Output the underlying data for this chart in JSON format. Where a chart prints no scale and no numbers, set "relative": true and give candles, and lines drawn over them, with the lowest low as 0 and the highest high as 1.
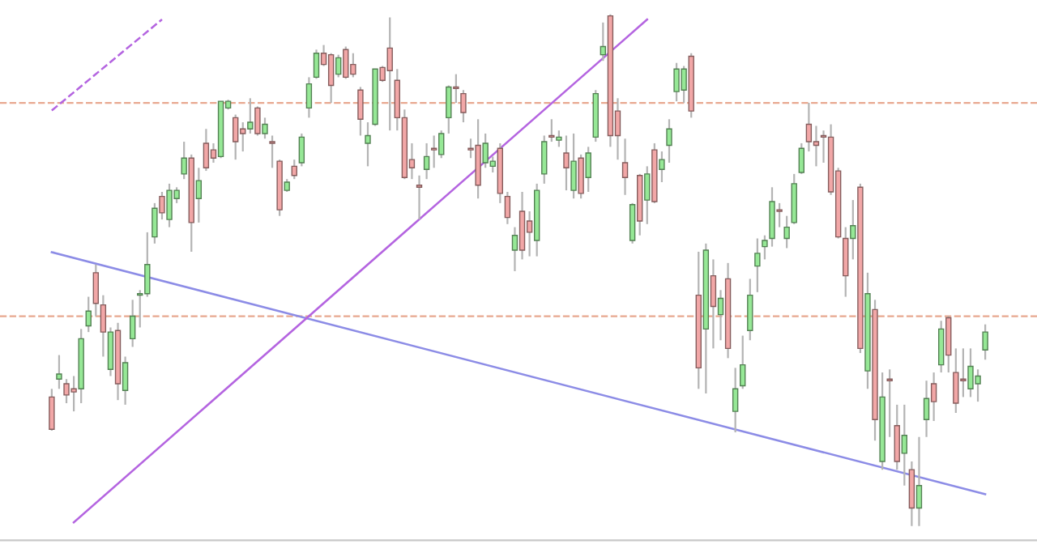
{
  "chart_data": {
    "type": "candlestick",
    "relative": true,
    "categories": [
      null,
      null,
      null,
      null,
      null,
      null,
      null,
      null,
      null,
      null,
      null,
      null,
      null,
      null,
      null,
      null,
      null,
      null,
      null,
      null,
      null,
      null,
      null,
      null,
      null,
      null,
      null,
      null,
      null,
      null,
      null,
      null,
      null,
      null,
      null,
      null,
      null,
      null,
      null,
      null,
      null,
      null,
      null,
      null,
      null,
      null,
      null,
      null,
      null,
      null,
      null,
      null,
      null,
      null,
      null,
      null,
      null,
      null,
      null,
      null,
      null,
      null,
      null,
      null,
      null,
      null,
      null,
      null,
      null,
      null,
      null,
      null,
      null,
      null,
      null,
      null,
      null,
      null,
      null,
      null,
      null,
      null,
      null,
      null,
      null,
      null,
      null,
      null,
      null,
      null,
      null,
      null,
      null,
      null,
      null,
      null,
      null,
      null,
      null,
      null,
      null,
      null,
      null,
      null,
      null,
      null,
      null,
      null,
      null,
      null,
      null,
      null,
      null,
      null,
      null,
      null,
      null,
      null,
      null,
      null,
      null,
      null,
      null,
      null,
      null,
      null,
      null,
      null
    ],
    "ohlc": [
      [
        0.252,
        0.268,
        0.186,
        0.189
      ],
      [
        0.287,
        0.334,
        0.268,
        0.297
      ],
      [
        0.278,
        0.287,
        0.24,
        0.256
      ],
      [
        0.268,
        0.293,
        0.224,
        0.262
      ],
      [
        0.268,
        0.385,
        0.24,
        0.366
      ],
      [
        0.391,
        0.448,
        0.379,
        0.42
      ],
      [
        0.495,
        0.511,
        0.41,
        0.435
      ],
      [
        0.432,
        0.451,
        0.331,
        0.379
      ],
      [
        0.306,
        0.388,
        0.293,
        0.379
      ],
      [
        0.382,
        0.397,
        0.246,
        0.278
      ],
      [
        0.265,
        0.331,
        0.237,
        0.319
      ],
      [
        0.366,
        0.442,
        0.35,
        0.41
      ],
      [
        0.451,
        0.461,
        0.388,
        0.454
      ],
      [
        0.454,
        0.574,
        0.448,
        0.511
      ],
      [
        0.565,
        0.631,
        0.552,
        0.621
      ],
      [
        0.644,
        0.653,
        0.599,
        0.612
      ],
      [
        0.599,
        0.669,
        0.584,
        0.656
      ],
      [
        0.64,
        0.662,
        0.631,
        0.656
      ],
      [
        0.688,
        0.751,
        0.678,
        0.719
      ],
      [
        0.719,
        0.726,
        0.536,
        0.593
      ],
      [
        0.64,
        0.7,
        0.593,
        0.675
      ],
      [
        0.748,
        0.776,
        0.694,
        0.7
      ],
      [
        0.735,
        0.748,
        0.71,
        0.719
      ],
      [
        0.722,
        0.83,
        0.719,
        0.83
      ],
      [
        0.817,
        0.833,
        0.814,
        0.83
      ],
      [
        0.798,
        0.804,
        0.716,
        0.751
      ],
      [
        0.776,
        0.789,
        0.732,
        0.767
      ],
      [
        0.776,
        0.836,
        0.767,
        0.789
      ],
      [
        0.817,
        0.82,
        0.763,
        0.767
      ],
      [
        0.767,
        0.798,
        0.757,
        0.785
      ],
      [
        0.751,
        0.763,
        0.7,
        0.748
      ],
      [
        0.713,
        0.716,
        0.606,
        0.618
      ],
      [
        0.656,
        0.678,
        0.653,
        0.672
      ],
      [
        0.703,
        0.716,
        0.678,
        0.685
      ],
      [
        0.71,
        0.767,
        0.703,
        0.76
      ],
      [
        0.817,
        0.877,
        0.798,
        0.864
      ],
      [
        0.877,
        0.931,
        0.874,
        0.924
      ],
      [
        0.924,
        0.94,
        0.899,
        0.902
      ],
      [
        0.921,
        0.924,
        0.827,
        0.861
      ],
      [
        0.883,
        0.921,
        0.877,
        0.915
      ],
      [
        0.931,
        0.937,
        0.874,
        0.877
      ],
      [
        0.902,
        0.924,
        0.877,
        0.883
      ],
      [
        0.852,
        0.858,
        0.763,
        0.795
      ],
      [
        0.748,
        0.789,
        0.703,
        0.763
      ],
      [
        0.785,
        0.893,
        0.782,
        0.893
      ],
      [
        0.896,
        0.899,
        0.868,
        0.871
      ],
      [
        0.934,
        0.994,
        0.773,
        0.89
      ],
      [
        0.871,
        0.893,
        0.773,
        0.798
      ],
      [
        0.798,
        0.814,
        0.678,
        0.681
      ],
      [
        0.716,
        0.748,
        0.678,
        0.7
      ],
      [
        0.666,
        0.685,
        0.599,
        0.662
      ],
      [
        0.697,
        0.748,
        0.678,
        0.722
      ],
      [
        0.738,
        0.763,
        0.7,
        0.735
      ],
      [
        0.726,
        0.773,
        0.719,
        0.767
      ],
      [
        0.798,
        0.861,
        0.767,
        0.858
      ],
      [
        0.858,
        0.883,
        0.827,
        0.855
      ],
      [
        0.845,
        0.852,
        0.789,
        0.808
      ],
      [
        0.738,
        0.757,
        0.719,
        0.735
      ],
      [
        0.744,
        0.795,
        0.64,
        0.666
      ],
      [
        0.71,
        0.767,
        0.7,
        0.748
      ],
      [
        0.703,
        0.722,
        0.691,
        0.713
      ],
      [
        0.738,
        0.748,
        0.631,
        0.65
      ],
      [
        0.644,
        0.653,
        0.59,
        0.603
      ],
      [
        0.539,
        0.584,
        0.498,
        0.568
      ],
      [
        0.615,
        0.653,
        0.521,
        0.539
      ],
      [
        0.596,
        0.615,
        0.527,
        0.574
      ],
      [
        0.558,
        0.669,
        0.527,
        0.656
      ],
      [
        0.688,
        0.763,
        0.669,
        0.751
      ],
      [
        0.76,
        0.795,
        0.751,
        0.763
      ],
      [
        0.754,
        0.773,
        0.741,
        0.76
      ],
      [
        0.729,
        0.763,
        0.656,
        0.7
      ],
      [
        0.656,
        0.767,
        0.64,
        0.713
      ],
      [
        0.719,
        0.726,
        0.64,
        0.65
      ],
      [
        0.681,
        0.741,
        0.653,
        0.729
      ],
      [
        0.76,
        0.852,
        0.751,
        0.845
      ],
      [
        0.921,
        0.984,
        0.909,
        0.937
      ],
      [
        0.997,
        1,
        0.741,
        0.763
      ],
      [
        0.811,
        0.836,
        0.716,
        0.763
      ],
      [
        0.71,
        0.757,
        0.647,
        0.681
      ],
      [
        0.558,
        0.631,
        0.552,
        0.628
      ],
      [
        0.685,
        0.688,
        0.568,
        0.596
      ],
      [
        0.637,
        0.703,
        0.59,
        0.688
      ],
      [
        0.735,
        0.748,
        0.631,
        0.634
      ],
      [
        0.697,
        0.732,
        0.672,
        0.716
      ],
      [
        0.744,
        0.795,
        0.71,
        0.776
      ],
      [
        0.849,
        0.905,
        0.83,
        0.893
      ],
      [
        0.852,
        0.899,
        0.827,
        0.893
      ],
      [
        0.918,
        0.924,
        0.798,
        0.811
      ],
      [
        0.451,
        0.536,
        0.268,
        0.309
      ],
      [
        0.385,
        0.552,
        0.259,
        0.539
      ],
      [
        0.489,
        0.521,
        0.347,
        0.429
      ],
      [
        0.413,
        0.461,
        0.363,
        0.445
      ],
      [
        0.483,
        0.514,
        0.328,
        0.347
      ],
      [
        0.224,
        0.309,
        0.183,
        0.268
      ],
      [
        0.274,
        0.372,
        0.268,
        0.315
      ],
      [
        0.382,
        0.483,
        0.363,
        0.451
      ],
      [
        0.508,
        0.562,
        0.457,
        0.533
      ],
      [
        0.546,
        0.568,
        0.521,
        0.558
      ],
      [
        0.562,
        0.662,
        0.546,
        0.634
      ],
      [
        0.615,
        0.631,
        0.584,
        0.618
      ],
      [
        0.562,
        0.606,
        0.543,
        0.584
      ],
      [
        0.593,
        0.688,
        0.59,
        0.669
      ],
      [
        0.691,
        0.748,
        0.688,
        0.738
      ],
      [
        0.785,
        0.827,
        0.732,
        0.751
      ],
      [
        0.751,
        0.782,
        0.703,
        0.744
      ],
      [
        0.76,
        0.773,
        0.71,
        0.763
      ],
      [
        0.76,
        0.785,
        0.647,
        0.653
      ],
      [
        0.694,
        0.7,
        0.562,
        0.565
      ],
      [
        0.562,
        0.584,
        0.448,
        0.489
      ],
      [
        0.562,
        0.637,
        0.521,
        0.587
      ],
      [
        0.662,
        0.669,
        0.338,
        0.347
      ],
      [
        0.303,
        0.495,
        0.268,
        0.454
      ],
      [
        0.423,
        0.442,
        0.167,
        0.208
      ],
      [
        0.126,
        0.3,
        0.11,
        0.252
      ],
      [
        0.284,
        0.306,
        0.174,
        0.287
      ],
      [
        0.196,
        0.237,
        0.11,
        0.126
      ],
      [
        0.142,
        0.237,
        0.079,
        0.177
      ],
      [
        0.11,
        0.126,
        0,
        0.035
      ],
      [
        0.035,
        0.174,
        0,
        0.079
      ],
      [
        0.208,
        0.284,
        0.174,
        0.249
      ],
      [
        0.278,
        0.3,
        0.205,
        0.243
      ],
      [
        0.315,
        0.401,
        0.3,
        0.385
      ],
      [
        0.407,
        0.41,
        0.3,
        0.334
      ],
      [
        0.3,
        0.347,
        0.221,
        0.24
      ],
      [
        0.284,
        0.347,
        0.252,
        0.287
      ],
      [
        0.268,
        0.347,
        0.252,
        0.312
      ],
      [
        0.278,
        0.306,
        0.243,
        0.293
      ],
      [
        0.344,
        0.394,
        0.325,
        0.379
      ]
    ],
    "colors": [
      "#f2a7a7",
      "#96e896",
      "#f2a7a7",
      "#f2a7a7",
      "#96e896",
      "#96e896",
      "#f2a7a7",
      "#f2a7a7",
      "#96e896",
      "#f2a7a7",
      "#96e896",
      "#96e896",
      "#96e896",
      "#96e896",
      "#96e896",
      "#f2a7a7",
      "#96e896",
      "#96e896",
      "#96e896",
      "#f2a7a7",
      "#96e896",
      "#f2a7a7",
      "#f2a7a7",
      "#96e896",
      "#96e896",
      "#f2a7a7",
      "#f2a7a7",
      "#96e896",
      "#f2a7a7",
      "#96e896",
      "#f2a7a7",
      "#f2a7a7",
      "#96e896",
      "#f2a7a7",
      "#96e896",
      "#96e896",
      "#96e896",
      "#f2a7a7",
      "#f2a7a7",
      "#96e896",
      "#f2a7a7",
      "#f2a7a7",
      "#f2a7a7",
      "#96e896",
      "#96e896",
      "#f2a7a7",
      "#f2a7a7",
      "#f2a7a7",
      "#f2a7a7",
      "#f2a7a7",
      "#f2a7a7",
      "#96e896",
      "#f2a7a7",
      "#96e896",
      "#96e896",
      "#f2a7a7",
      "#f2a7a7",
      "#f2a7a7",
      "#f2a7a7",
      "#96e896",
      "#96e896",
      "#f2a7a7",
      "#f2a7a7",
      "#96e896",
      "#f2a7a7",
      "#f2a7a7",
      "#96e896",
      "#96e896",
      "#f2a7a7",
      "#96e896",
      "#f2a7a7",
      "#96e896",
      "#f2a7a7",
      "#96e896",
      "#96e896",
      "#96e896",
      "#f2a7a7",
      "#f2a7a7",
      "#f2a7a7",
      "#96e896",
      "#f2a7a7",
      "#96e896",
      "#f2a7a7",
      "#96e896",
      "#96e896",
      "#96e896",
      "#96e896",
      "#f2a7a7",
      "#f2a7a7",
      "#96e896",
      "#f2a7a7",
      "#96e896",
      "#f2a7a7",
      "#96e896",
      "#96e896",
      "#96e896",
      "#96e896",
      "#96e896",
      "#96e896",
      "#f2a7a7",
      "#96e896",
      "#96e896",
      "#96e896",
      "#f2a7a7",
      "#f2a7a7",
      "#f2a7a7",
      "#f2a7a7",
      "#f2a7a7",
      "#f2a7a7",
      "#96e896",
      "#f2a7a7",
      "#96e896",
      "#f2a7a7",
      "#96e896",
      "#f2a7a7",
      "#f2a7a7",
      "#96e896",
      "#f2a7a7",
      "#96e896",
      "#96e896",
      "#f2a7a7",
      "#96e896",
      "#f2a7a7",
      "#f2a7a7",
      "#f2a7a7",
      "#96e896",
      "#96e896",
      "#96e896"
    ],
    "series": [
      {
        "type": "line",
        "color": "#8c8ce6",
        "values": [
          0.535,
          null,
          null,
          null,
          null,
          null,
          null,
          null,
          null,
          null,
          null,
          null,
          null,
          null,
          null,
          null,
          null,
          null,
          null,
          null,
          null,
          null,
          null,
          null,
          null,
          null,
          null,
          null,
          null,
          null,
          null,
          null,
          null,
          null,
          null,
          null,
          null,
          null,
          null,
          null,
          null,
          null,
          null,
          null,
          null,
          null,
          null,
          null,
          null,
          null,
          null,
          null,
          null,
          null,
          null,
          null,
          null,
          null,
          null,
          null,
          null,
          null,
          null,
          null,
          null,
          null,
          null,
          null,
          null,
          null,
          null,
          null,
          null,
          null,
          null,
          null,
          null,
          null,
          null,
          null,
          null,
          null,
          null,
          null,
          null,
          null,
          null,
          null,
          null,
          null,
          null,
          null,
          null,
          null,
          null,
          null,
          null,
          null,
          null,
          null,
          null,
          null,
          null,
          null,
          null,
          null,
          null,
          null,
          null,
          null,
          null,
          null,
          null,
          null,
          null,
          null,
          null,
          null,
          null,
          null,
          null,
          null,
          null,
          null,
          null,
          null,
          null,
          0.062
        ]
      },
      {
        "type": "line",
        "color": "#b464e0",
        "values": [
          null,
          null,
          null,
          0.007,
          null,
          null,
          null,
          null,
          null,
          null,
          null,
          null,
          null,
          null,
          null,
          null,
          null,
          null,
          null,
          null,
          null,
          null,
          null,
          null,
          null,
          null,
          null,
          null,
          null,
          null,
          null,
          null,
          null,
          null,
          null,
          null,
          null,
          null,
          null,
          null,
          null,
          null,
          null,
          null,
          null,
          null,
          null,
          null,
          null,
          null,
          null,
          null,
          null,
          null,
          null,
          null,
          null,
          null,
          null,
          null,
          null,
          null,
          null,
          null,
          null,
          null,
          null,
          null,
          null,
          null,
          null,
          null,
          null,
          null,
          null,
          null,
          null,
          null,
          null,
          null,
          null,
          0.99,
          null,
          null,
          null,
          null,
          null,
          null,
          null,
          null,
          null,
          null,
          null,
          null,
          null,
          null,
          null,
          null,
          null,
          null,
          null,
          null,
          null,
          null,
          null,
          null,
          null,
          null,
          null,
          null,
          null,
          null,
          null,
          null,
          null,
          null,
          null,
          null,
          null,
          null,
          null,
          null,
          null,
          null,
          null,
          null,
          null,
          null
        ]
      },
      {
        "type": "line",
        "color": "#b464e0",
        "line_style": "dashed",
        "values": [
          0.812,
          null,
          null,
          null,
          null,
          null,
          null,
          null,
          null,
          null,
          null,
          null,
          null,
          null,
          null,
          0.99,
          null,
          null,
          null,
          null,
          null,
          null,
          null,
          null,
          null,
          null,
          null,
          null,
          null,
          null,
          null,
          null,
          null,
          null,
          null,
          null,
          null,
          null,
          null,
          null,
          null,
          null,
          null,
          null,
          null,
          null,
          null,
          null,
          null,
          null,
          null,
          null,
          null,
          null,
          null,
          null,
          null,
          null,
          null,
          null,
          null,
          null,
          null,
          null,
          null,
          null,
          null,
          null,
          null,
          null,
          null,
          null,
          null,
          null,
          null,
          null,
          null,
          null,
          null,
          null,
          null,
          null,
          null,
          null,
          null,
          null,
          null,
          null,
          null,
          null,
          null,
          null,
          null,
          null,
          null,
          null,
          null,
          null,
          null,
          null,
          null,
          null,
          null,
          null,
          null,
          null,
          null,
          null,
          null,
          null,
          null,
          null,
          null,
          null,
          null,
          null,
          null,
          null,
          null,
          null,
          null,
          null,
          null,
          null,
          null,
          null,
          null,
          null
        ]
      }
    ],
    "ref_lines": [
      {
        "axis": "y",
        "value": 0.827,
        "color": "#e8a890",
        "line_style": "dashed"
      },
      {
        "axis": "y",
        "value": 0.41,
        "color": "#e8a890",
        "line_style": "dashed"
      }
    ]
  }
}
